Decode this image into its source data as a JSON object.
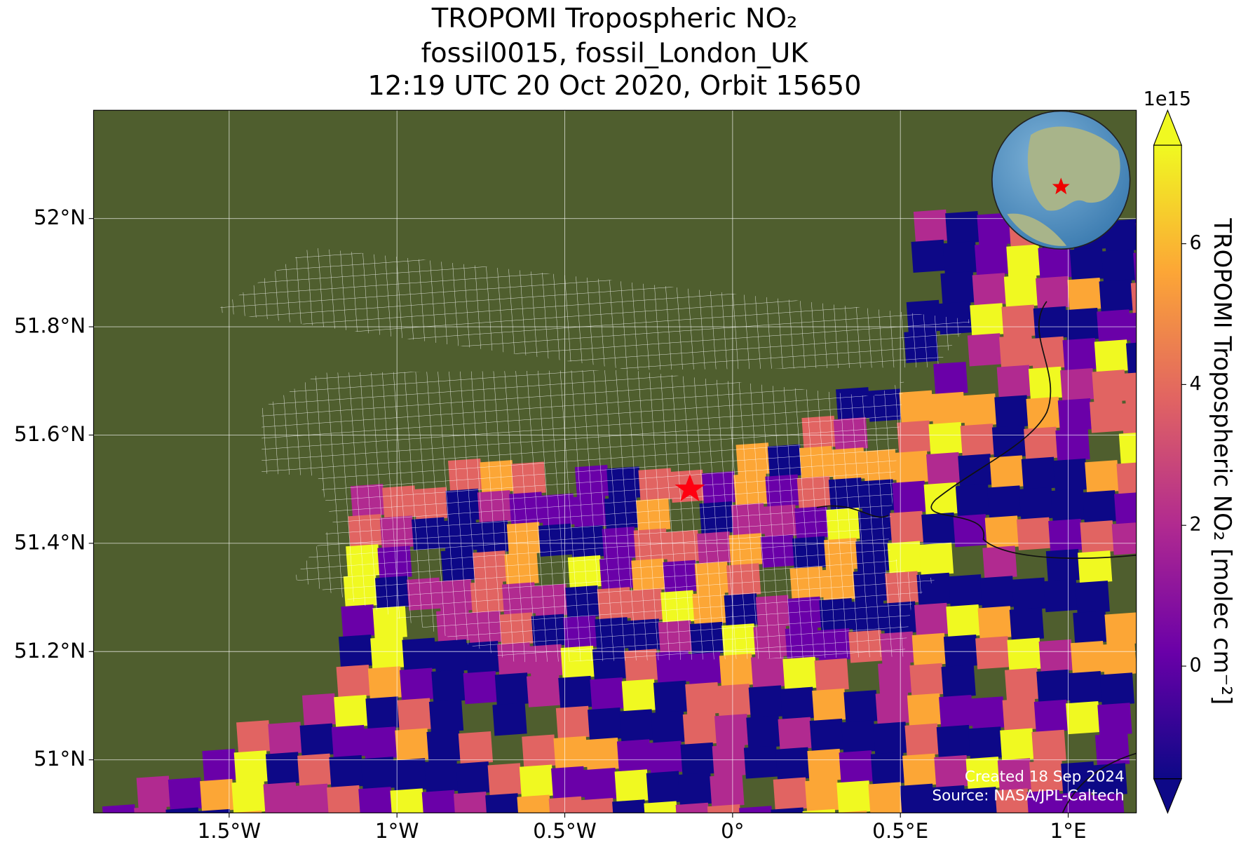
{
  "chart_data": {
    "type": "map",
    "title_lines": [
      "TROPOMI Tropospheric NO₂",
      "fossil0015, fossil_London_UK",
      "12:19 UTC 20 Oct 2020, Orbit 15650"
    ],
    "xlim": [
      -1.904,
      1.203
    ],
    "ylim": [
      50.902,
      52.2
    ],
    "xticks": [
      {
        "value": -1.5,
        "label": "1.5°W"
      },
      {
        "value": -1,
        "label": "1°W"
      },
      {
        "value": -0.5,
        "label": "0.5°W"
      },
      {
        "value": 0,
        "label": "0°"
      },
      {
        "value": 0.5,
        "label": "0.5°E"
      },
      {
        "value": 1,
        "label": "1°E"
      }
    ],
    "yticks": [
      {
        "value": 51,
        "label": "51°N"
      },
      {
        "value": 51.2,
        "label": "51.2°N"
      },
      {
        "value": 51.4,
        "label": "51.4°N"
      },
      {
        "value": 51.6,
        "label": "51.6°N"
      },
      {
        "value": 51.8,
        "label": "51.8°N"
      },
      {
        "value": 52,
        "label": "52°N"
      }
    ],
    "grid": true,
    "colorbar": {
      "label": "TROPOMI Tropospheric NO₂ [molec cm⁻²]",
      "offset_label": "1e15",
      "lim": [
        -1.6,
        7.4
      ],
      "ticks": [
        0,
        2,
        4,
        6
      ],
      "colors": [
        "#0d0887",
        "#6a00a8",
        "#b12a90",
        "#e16462",
        "#fca636",
        "#f0f921"
      ]
    },
    "annotations": [
      "Created 18 Sep 2024",
      "Source: NASA/JPL-Caltech"
    ]
  }
}
